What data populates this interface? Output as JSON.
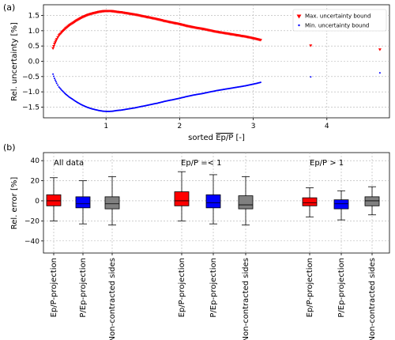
{
  "chart_data": [
    {
      "type": "scatter",
      "panel_label": "(a)",
      "xlabel_main": "sorted ",
      "xlabel_ratio": "Ep/P",
      "xlabel_unit": " [-]",
      "ylabel": "Rel. uncertainty [%]",
      "xlim": [
        0.15,
        4.85
      ],
      "ylim": [
        -1.85,
        1.85
      ],
      "x_ticks": [
        1,
        2,
        3,
        4
      ],
      "y_ticks": [
        -1.5,
        -1.0,
        -0.5,
        0.0,
        0.5,
        1.0,
        1.5
      ],
      "y_tick_labels": [
        "−1.5",
        "−1.0",
        "−0.5",
        "0.0",
        "0.5",
        "1.0",
        "1.5"
      ],
      "grid": true,
      "legend_position": "top-right",
      "series": [
        {
          "name": "Max. uncertainty bound",
          "color": "#ff0000",
          "marker": "triangle-down",
          "points": [
            [
              0.28,
              0.42
            ],
            [
              0.3,
              0.56
            ],
            [
              0.33,
              0.72
            ],
            [
              0.36,
              0.84
            ],
            [
              0.4,
              0.95
            ],
            [
              0.45,
              1.07
            ],
            [
              0.5,
              1.17
            ],
            [
              0.55,
              1.25
            ],
            [
              0.6,
              1.33
            ],
            [
              0.65,
              1.4
            ],
            [
              0.7,
              1.46
            ],
            [
              0.75,
              1.51
            ],
            [
              0.8,
              1.55
            ],
            [
              0.85,
              1.58
            ],
            [
              0.9,
              1.61
            ],
            [
              0.95,
              1.63
            ],
            [
              1.0,
              1.64
            ],
            [
              1.05,
              1.64
            ],
            [
              1.1,
              1.63
            ],
            [
              1.15,
              1.61
            ],
            [
              1.2,
              1.6
            ],
            [
              1.3,
              1.56
            ],
            [
              1.4,
              1.52
            ],
            [
              1.5,
              1.47
            ],
            [
              1.6,
              1.42
            ],
            [
              1.7,
              1.37
            ],
            [
              1.8,
              1.31
            ],
            [
              1.9,
              1.26
            ],
            [
              2.0,
              1.21
            ],
            [
              2.1,
              1.15
            ],
            [
              2.2,
              1.1
            ],
            [
              2.3,
              1.06
            ],
            [
              2.4,
              1.01
            ],
            [
              2.5,
              0.96
            ],
            [
              2.6,
              0.92
            ],
            [
              2.7,
              0.88
            ],
            [
              2.8,
              0.84
            ],
            [
              2.9,
              0.8
            ],
            [
              3.05,
              0.72
            ],
            [
              3.1,
              0.69
            ],
            [
              3.78,
              0.51
            ],
            [
              4.72,
              0.38
            ]
          ]
        },
        {
          "name": "Min. uncertainty bound",
          "color": "#0000ff",
          "marker": "point",
          "points": [
            [
              0.28,
              -0.42
            ],
            [
              0.3,
              -0.56
            ],
            [
              0.33,
              -0.72
            ],
            [
              0.36,
              -0.84
            ],
            [
              0.4,
              -0.95
            ],
            [
              0.45,
              -1.07
            ],
            [
              0.5,
              -1.17
            ],
            [
              0.55,
              -1.25
            ],
            [
              0.6,
              -1.33
            ],
            [
              0.65,
              -1.4
            ],
            [
              0.7,
              -1.46
            ],
            [
              0.75,
              -1.51
            ],
            [
              0.8,
              -1.55
            ],
            [
              0.85,
              -1.58
            ],
            [
              0.9,
              -1.61
            ],
            [
              0.95,
              -1.63
            ],
            [
              1.0,
              -1.64
            ],
            [
              1.05,
              -1.64
            ],
            [
              1.1,
              -1.63
            ],
            [
              1.15,
              -1.61
            ],
            [
              1.2,
              -1.6
            ],
            [
              1.3,
              -1.56
            ],
            [
              1.4,
              -1.52
            ],
            [
              1.5,
              -1.47
            ],
            [
              1.6,
              -1.42
            ],
            [
              1.7,
              -1.37
            ],
            [
              1.8,
              -1.31
            ],
            [
              1.9,
              -1.26
            ],
            [
              2.0,
              -1.21
            ],
            [
              2.1,
              -1.15
            ],
            [
              2.2,
              -1.1
            ],
            [
              2.3,
              -1.06
            ],
            [
              2.4,
              -1.01
            ],
            [
              2.5,
              -0.96
            ],
            [
              2.6,
              -0.92
            ],
            [
              2.7,
              -0.88
            ],
            [
              2.8,
              -0.84
            ],
            [
              2.9,
              -0.8
            ],
            [
              3.05,
              -0.72
            ],
            [
              3.1,
              -0.69
            ],
            [
              3.78,
              -0.51
            ],
            [
              4.72,
              -0.38
            ]
          ]
        }
      ]
    },
    {
      "type": "box",
      "panel_label": "(b)",
      "ylabel": "Rel. error [%]",
      "ylim": [
        -52,
        48
      ],
      "y_ticks": [
        -40,
        -20,
        0,
        20,
        40
      ],
      "y_tick_labels": [
        "−40",
        "−20",
        "0",
        "20",
        "40"
      ],
      "grid": true,
      "groups": [
        "All data",
        "Ep/P =< 1",
        "Ep/P > 1"
      ],
      "categories": [
        "Ep/P-projection",
        "P/Ep-projection",
        "Non-contracted sides"
      ],
      "colors": [
        "#ff0000",
        "#0000ff",
        "#808080"
      ],
      "boxes": [
        {
          "group": 0,
          "category": 0,
          "whislo": -20,
          "q1": -5,
          "median": 0,
          "q3": 6,
          "whishi": 23
        },
        {
          "group": 0,
          "category": 1,
          "whislo": -23,
          "q1": -7,
          "median": -3,
          "q3": 4,
          "whishi": 20
        },
        {
          "group": 0,
          "category": 2,
          "whislo": -24,
          "q1": -8,
          "median": -3,
          "q3": 4,
          "whishi": 24
        },
        {
          "group": 1,
          "category": 0,
          "whislo": -20,
          "q1": -5,
          "median": 0,
          "q3": 9,
          "whishi": 29
        },
        {
          "group": 1,
          "category": 1,
          "whislo": -23,
          "q1": -7,
          "median": -2,
          "q3": 6,
          "whishi": 26
        },
        {
          "group": 1,
          "category": 2,
          "whislo": -24,
          "q1": -8,
          "median": -4,
          "q3": 5,
          "whishi": 24
        },
        {
          "group": 2,
          "category": 0,
          "whislo": -16,
          "q1": -5,
          "median": -2,
          "q3": 3,
          "whishi": 13
        },
        {
          "group": 2,
          "category": 1,
          "whislo": -19,
          "q1": -8,
          "median": -3,
          "q3": 1,
          "whishi": 10
        },
        {
          "group": 2,
          "category": 2,
          "whislo": -14,
          "q1": -5,
          "median": 0,
          "q3": 4,
          "whishi": 14
        }
      ]
    }
  ]
}
